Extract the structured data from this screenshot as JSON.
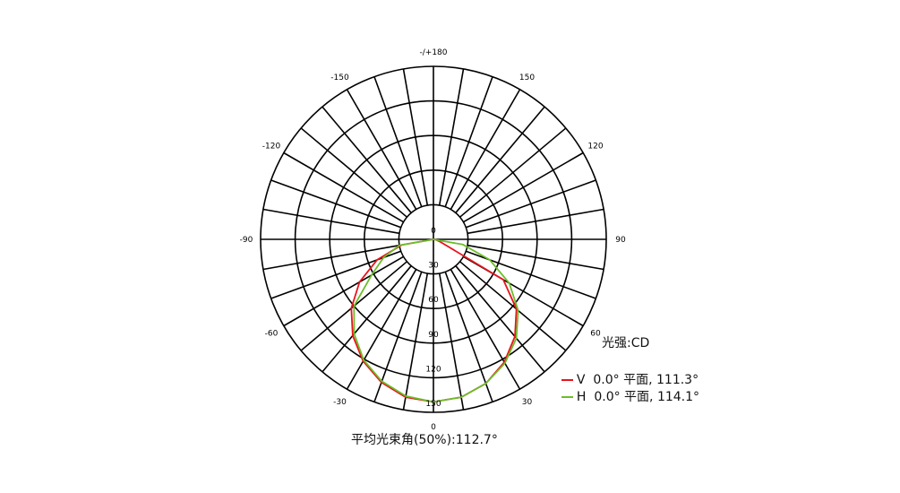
{
  "chart_data": {
    "type": "polar-line",
    "unit_label": "光强:CD",
    "radial_ticks": [
      30,
      60,
      90,
      120,
      150
    ],
    "radial_zero_label": "0",
    "rmax": 150,
    "angle_labels": [
      "-/+180",
      "150",
      "120",
      "90",
      "60",
      "30",
      "0",
      "-30",
      "-60",
      "-90",
      "-120",
      "-150"
    ],
    "angle_label_values": [
      180,
      150,
      120,
      90,
      60,
      30,
      0,
      -30,
      -60,
      -90,
      -120,
      -150
    ],
    "spoke_step_deg": 10,
    "grid": true,
    "legend_position": "bottom-right",
    "angles": [
      -90,
      -80,
      -70,
      -60,
      -50,
      -40,
      -30,
      -20,
      -10,
      0,
      10,
      20,
      30,
      40,
      50,
      60,
      70,
      80,
      90
    ],
    "series": [
      {
        "name": "V  0.0° 平面, 111.3°",
        "color": "#e8141b",
        "values": [
          0,
          28,
          52,
          74,
          93,
          109,
          122,
          132,
          139,
          141,
          139,
          133,
          123,
          110,
          94,
          70,
          6,
          2,
          0
        ]
      },
      {
        "name": "H  0.0° 平面, 114.1°",
        "color": "#6cbd2a",
        "values": [
          0,
          30,
          46,
          62,
          90,
          107,
          121,
          131,
          138,
          141,
          139,
          133,
          124,
          112,
          96,
          76,
          52,
          26,
          0
        ]
      }
    ],
    "footer": "平均光束角(50%):112.7°"
  }
}
